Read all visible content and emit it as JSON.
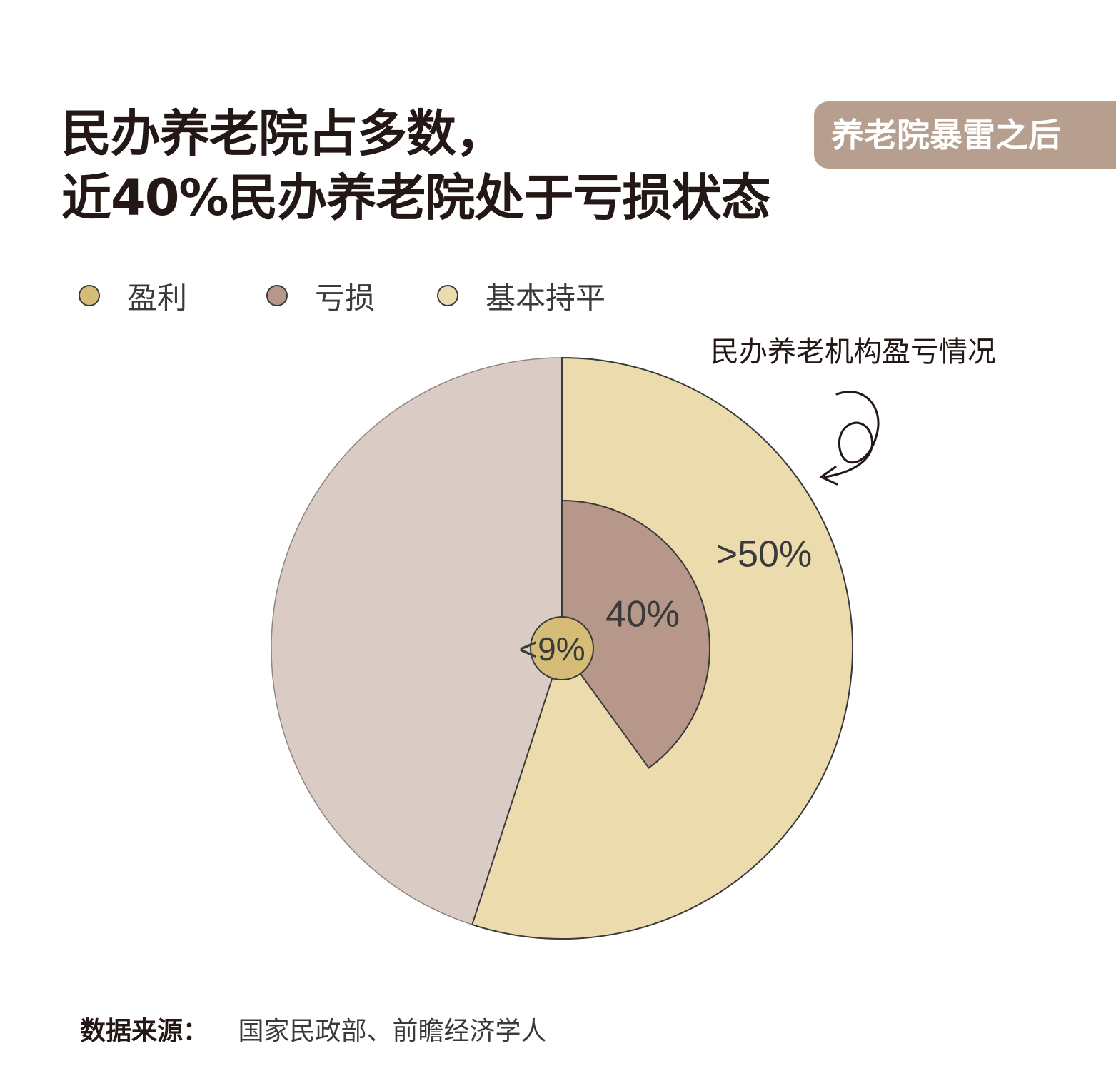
{
  "title_lines": [
    "民办养老院占多数，",
    "近40%民办养老院处于亏损状态"
  ],
  "tag": "养老院暴雷之后",
  "annotation": "民办养老机构盈亏情况",
  "source": {
    "label": "数据来源：",
    "value": "国家民政部、前瞻经济学人"
  },
  "colors": {
    "profit": "#d6bd77",
    "loss": "#b69789",
    "breakeven": "#ebdbad",
    "outer_base": "#dacbc4",
    "tag_bg": "#b69f8f",
    "text": "#231815"
  },
  "chart_data": {
    "type": "pie",
    "layers": "concentric",
    "legend": {
      "placement": "top-left",
      "items": [
        {
          "key": "profit",
          "label": "盈利"
        },
        {
          "key": "loss",
          "label": "亏损"
        },
        {
          "key": "breakeven",
          "label": "基本持平"
        }
      ]
    },
    "slices": [
      {
        "key": "breakeven",
        "label": ">50%",
        "value": 55
      },
      {
        "key": "loss",
        "label": "40%",
        "value": 40
      },
      {
        "key": "profit",
        "label": "<9%",
        "value": 9
      }
    ],
    "title": "",
    "grid": false
  }
}
